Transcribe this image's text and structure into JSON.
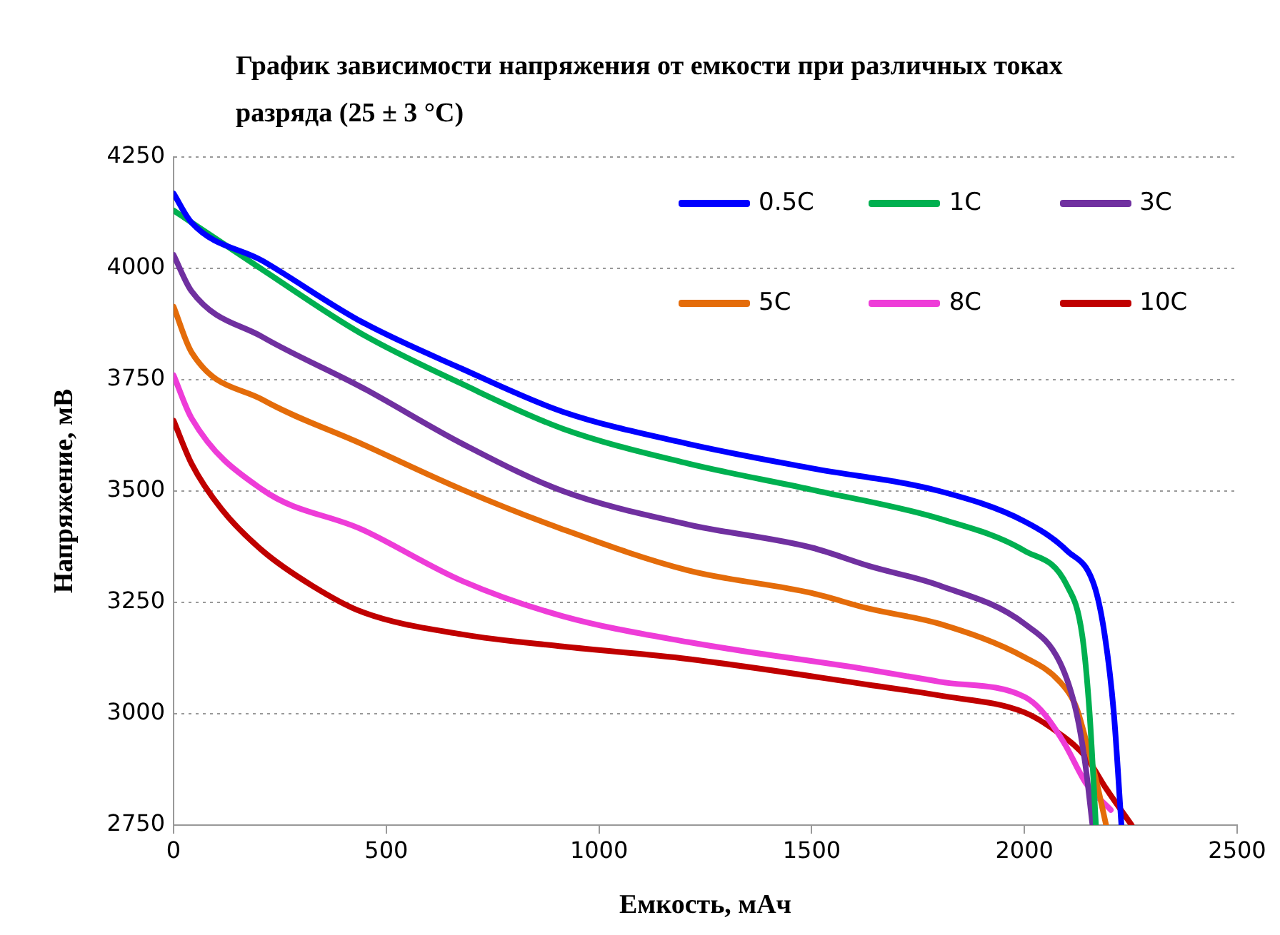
{
  "chart_data": {
    "type": "line",
    "title": "График зависимости напряжения от емкости при различных токах разряда (25 ± 3 °С)",
    "xlabel": "Емкость, мАч",
    "ylabel": "Напряжение, мВ",
    "xlim": [
      0,
      2500
    ],
    "xticks": [
      0,
      500,
      1000,
      1500,
      2000,
      2500
    ],
    "ylim": [
      2750,
      4250
    ],
    "yticks": [
      2750,
      3000,
      3250,
      3500,
      3750,
      4000,
      4250
    ],
    "grid": "y",
    "legend": "top right",
    "marker": "none",
    "line_style": "solid",
    "series": [
      {
        "name": "0.5C",
        "color": "#0000ff",
        "x": [
          0,
          42,
          209,
          442,
          679,
          915,
          1209,
          1500,
          1800,
          2000,
          2100,
          2164,
          2189,
          2210,
          2228
        ],
        "values": [
          4168,
          4103,
          4017,
          3880,
          3774,
          3678,
          3606,
          3551,
          3500,
          3432,
          3366,
          3288,
          3175,
          3003,
          2750
        ]
      },
      {
        "name": "1C",
        "color": "#00b050",
        "x": [
          0,
          209,
          442,
          679,
          915,
          1209,
          1500,
          1800,
          2000,
          2100,
          2136,
          2153,
          2168
        ],
        "values": [
          4130,
          3997,
          3853,
          3740,
          3640,
          3562,
          3503,
          3438,
          3366,
          3288,
          3175,
          3003,
          2750
        ]
      },
      {
        "name": "3C",
        "color": "#7030a0",
        "x": [
          0,
          42,
          209,
          442,
          679,
          915,
          1209,
          1500,
          1634,
          1800,
          2000,
          2083,
          2122,
          2143,
          2160
        ],
        "values": [
          4030,
          3949,
          3846,
          3733,
          3606,
          3500,
          3425,
          3373,
          3332,
          3288,
          3202,
          3116,
          3003,
          2887,
          2750
        ]
      },
      {
        "name": "5C",
        "color": "#e46c0a",
        "x": [
          0,
          42,
          209,
          442,
          679,
          915,
          1209,
          1500,
          1634,
          1800,
          2000,
          2083,
          2122,
          2146,
          2168,
          2192
        ],
        "values": [
          3914,
          3812,
          3705,
          3606,
          3503,
          3414,
          3322,
          3271,
          3236,
          3202,
          3127,
          3072,
          3014,
          2935,
          2853,
          2750
        ]
      },
      {
        "name": "8C",
        "color": "#ee3cd8",
        "x": [
          0,
          42,
          209,
          442,
          679,
          915,
          1209,
          1634,
          1800,
          2000,
          2040,
          2093,
          2146,
          2203
        ],
        "values": [
          3760,
          3664,
          3503,
          3414,
          3298,
          3219,
          3161,
          3099,
          3072,
          3038,
          3007,
          2935,
          2842,
          2784
        ]
      },
      {
        "name": "10C",
        "color": "#c00000",
        "x": [
          0,
          42,
          113,
          209,
          325,
          442,
          679,
          915,
          1209,
          1634,
          1800,
          2000,
          2083,
          2146,
          2192,
          2252
        ],
        "values": [
          3658,
          3562,
          3459,
          3366,
          3288,
          3229,
          3178,
          3151,
          3123,
          3065,
          3041,
          3003,
          2955,
          2901,
          2832,
          2750
        ]
      }
    ]
  }
}
